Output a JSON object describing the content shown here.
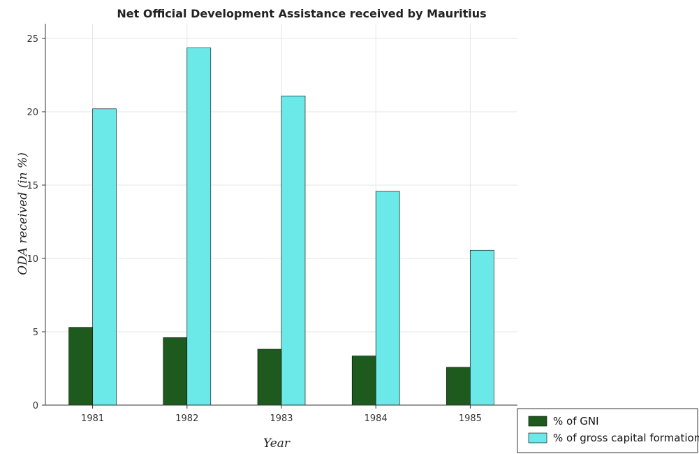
{
  "chart_data": {
    "type": "bar",
    "title": "Net Official Development Assistance received by Mauritius",
    "xlabel": "Year",
    "ylabel": "ODA received (in %)",
    "categories": [
      "1981",
      "1982",
      "1983",
      "1984",
      "1985"
    ],
    "series": [
      {
        "name": "% of GNI",
        "color": "#1e5a1e",
        "values": [
          5.3,
          4.6,
          3.81,
          3.35,
          2.58
        ]
      },
      {
        "name": "% of gross capital formation",
        "color": "#6be8e8",
        "values": [
          20.2,
          24.35,
          21.08,
          14.57,
          10.56
        ]
      }
    ],
    "ylim": [
      0,
      26
    ],
    "yticks": [
      0,
      5,
      10,
      15,
      20,
      25
    ],
    "grid": true,
    "legend_position": "bottom-right"
  }
}
